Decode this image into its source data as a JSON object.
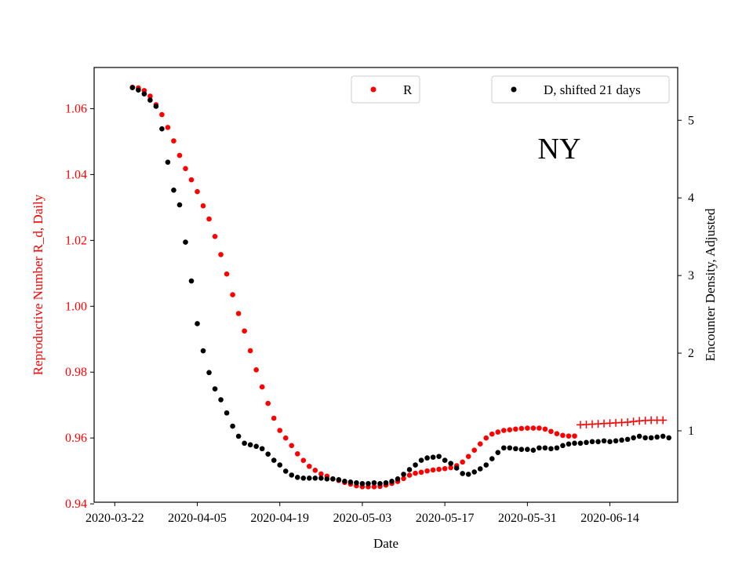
{
  "chart_data": {
    "type": "scatter",
    "annotation": "NY",
    "xlabel": "Date",
    "ylabel_left": "Reproductive Number R_d, Daily",
    "ylabel_right": "Encounter Density, Adjusted",
    "x_tick_labels": [
      "2020-03-22",
      "2020-04-05",
      "2020-04-19",
      "2020-05-03",
      "2020-05-17",
      "2020-05-31",
      "2020-06-14"
    ],
    "x_tick_days": [
      0,
      14,
      28,
      42,
      56,
      70,
      84
    ],
    "x_axis_note": "day offset from 2020-03-22",
    "xlim": [
      -3.5,
      95.5
    ],
    "y_left": {
      "lim": [
        0.9405,
        1.0725
      ],
      "ticks": [
        0.94,
        0.96,
        0.98,
        1.0,
        1.02,
        1.04,
        1.06
      ],
      "tick_labels": [
        "0.94",
        "0.96",
        "0.98",
        "1.00",
        "1.02",
        "1.04",
        "1.06"
      ],
      "color": "#ff0000"
    },
    "y_right": {
      "lim": [
        0.08,
        5.68
      ],
      "ticks": [
        1,
        2,
        3,
        4,
        5
      ],
      "tick_labels": [
        "1",
        "2",
        "3",
        "4",
        "5"
      ],
      "color": "#000000"
    },
    "legend": [
      {
        "label": "R",
        "color": "#ff0000",
        "marker": "dot"
      },
      {
        "label": "D, shifted 21 days",
        "color": "#000000",
        "marker": "dot"
      }
    ],
    "series": [
      {
        "name": "R",
        "axis": "left",
        "color": "#ff0000",
        "marker": "dot",
        "x_start": 3,
        "values": [
          1.0665,
          1.0663,
          1.0655,
          1.0638,
          1.0612,
          1.0582,
          1.0543,
          1.0502,
          1.0458,
          1.0418,
          1.0384,
          1.0348,
          1.0305,
          1.0265,
          1.0212,
          1.0157,
          1.0098,
          1.0035,
          0.9978,
          0.9925,
          0.9865,
          0.9807,
          0.9755,
          0.9705,
          0.966,
          0.9623,
          0.96,
          0.9577,
          0.9552,
          0.9532,
          0.9514,
          0.9502,
          0.9491,
          0.9484,
          0.9476,
          0.9471,
          0.9465,
          0.946,
          0.9455,
          0.9452,
          0.9452,
          0.9452,
          0.9453,
          0.9457,
          0.9462,
          0.9468,
          0.9477,
          0.9487,
          0.9493,
          0.9496,
          0.95,
          0.9503,
          0.9505,
          0.9507,
          0.951,
          0.9516,
          0.9527,
          0.9544,
          0.9563,
          0.9582,
          0.96,
          0.9612,
          0.9618,
          0.9623,
          0.9625,
          0.9627,
          0.9629,
          0.963,
          0.963,
          0.963,
          0.9627,
          0.962,
          0.9613,
          0.9608,
          0.9606,
          0.9606
        ]
      },
      {
        "name": "R projected",
        "axis": "left",
        "color": "#ff0000",
        "marker": "plus",
        "x_start": 79,
        "values": [
          0.964,
          0.9641,
          0.9642,
          0.9643,
          0.9644,
          0.9645,
          0.9646,
          0.9647,
          0.9648,
          0.965,
          0.9652,
          0.9653,
          0.9654,
          0.9654,
          0.9654
        ]
      },
      {
        "name": "D, shifted 21 days",
        "axis": "right",
        "color": "#000000",
        "marker": "dot",
        "x_start": 3,
        "values": [
          5.42,
          5.39,
          5.34,
          5.26,
          5.18,
          4.89,
          4.46,
          4.1,
          3.91,
          3.43,
          2.93,
          2.38,
          2.03,
          1.75,
          1.54,
          1.4,
          1.23,
          1.06,
          0.93,
          0.84,
          0.82,
          0.8,
          0.77,
          0.7,
          0.62,
          0.56,
          0.48,
          0.43,
          0.4,
          0.39,
          0.39,
          0.39,
          0.39,
          0.38,
          0.38,
          0.37,
          0.35,
          0.34,
          0.33,
          0.32,
          0.32,
          0.33,
          0.32,
          0.33,
          0.35,
          0.38,
          0.44,
          0.5,
          0.56,
          0.62,
          0.65,
          0.66,
          0.67,
          0.62,
          0.58,
          0.52,
          0.45,
          0.44,
          0.47,
          0.51,
          0.56,
          0.64,
          0.72,
          0.78,
          0.78,
          0.77,
          0.76,
          0.76,
          0.75,
          0.78,
          0.78,
          0.77,
          0.78,
          0.81,
          0.83,
          0.84,
          0.84,
          0.85,
          0.86,
          0.86,
          0.87,
          0.86,
          0.87,
          0.88,
          0.89,
          0.91,
          0.93,
          0.91,
          0.91,
          0.92,
          0.93,
          0.91
        ]
      }
    ]
  }
}
